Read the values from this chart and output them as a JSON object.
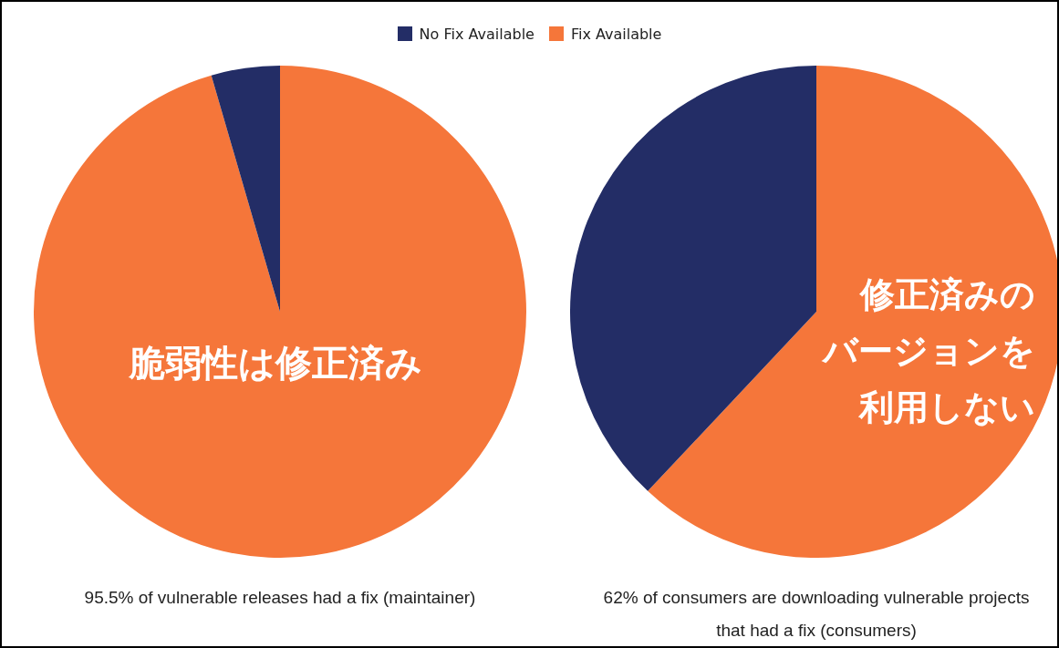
{
  "chart_data": [
    {
      "type": "pie",
      "categories": [
        "Fix Available",
        "No Fix Available"
      ],
      "values": [
        95.5,
        4.5
      ],
      "colors": [
        "#f5763a",
        "#232d66"
      ],
      "legend": "top",
      "annotations": [
        "脆弱性は修正済み",
        "95.5% of vulnerable releases had a fix (maintainer)"
      ]
    },
    {
      "type": "pie",
      "categories": [
        null,
        null
      ],
      "values": [
        62,
        38
      ],
      "colors": [
        "#f5763a",
        "#232d66"
      ],
      "annotations": [
        "修正済みの",
        "バージョンを",
        "利用しない",
        "62% of consumers are downloading vulnerable projects that had a fix (consumers)"
      ]
    }
  ]
}
